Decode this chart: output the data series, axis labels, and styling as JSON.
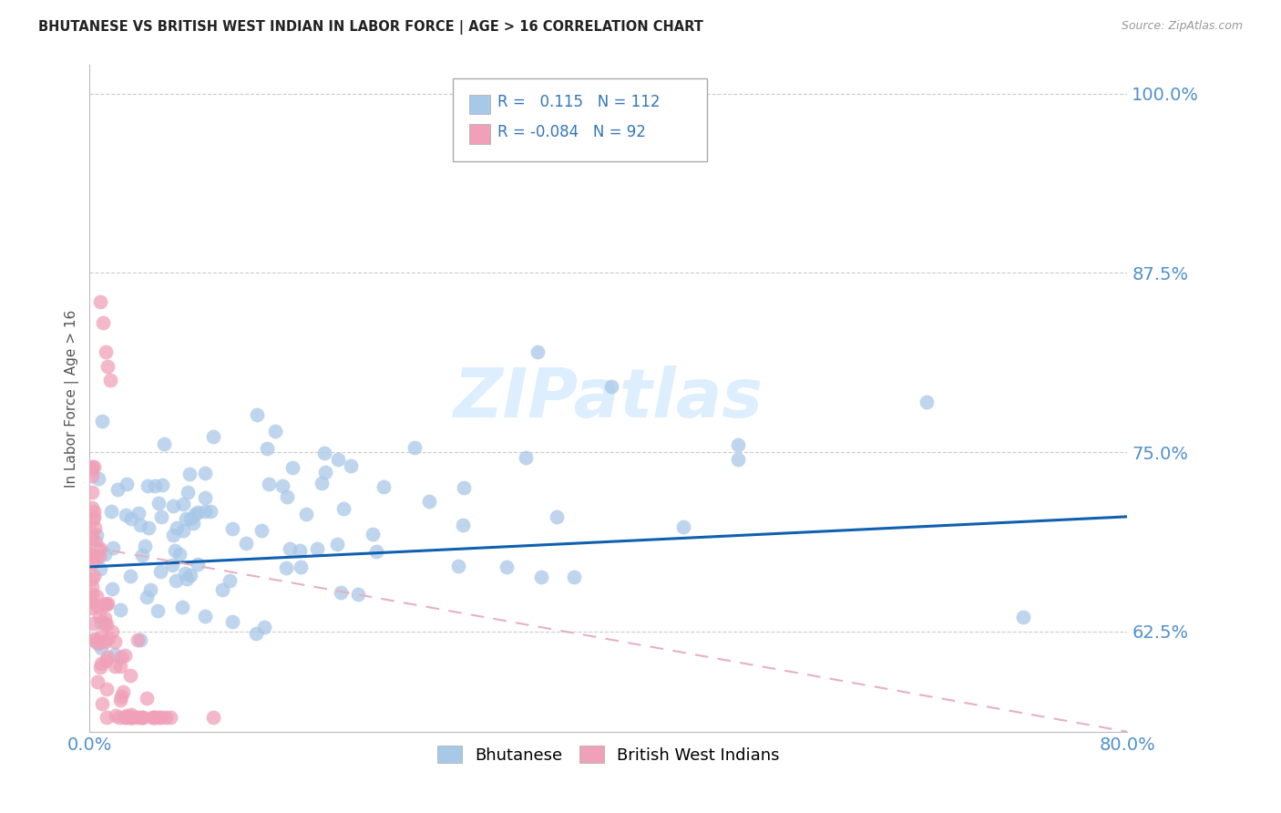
{
  "title": "BHUTANESE VS BRITISH WEST INDIAN IN LABOR FORCE | AGE > 16 CORRELATION CHART",
  "source": "Source: ZipAtlas.com",
  "ylabel": "In Labor Force | Age > 16",
  "xlim": [
    0.0,
    0.8
  ],
  "ylim": [
    0.555,
    1.02
  ],
  "yticks": [
    0.625,
    0.75,
    0.875,
    1.0
  ],
  "ytick_labels": [
    "62.5%",
    "75.0%",
    "87.5%",
    "100.0%"
  ],
  "xtick_labels": [
    "0.0%",
    "80.0%"
  ],
  "xticks": [
    0.0,
    0.8
  ],
  "bhutanese_R": 0.115,
  "bhutanese_N": 112,
  "bwi_R": -0.084,
  "bwi_N": 92,
  "bhutanese_color": "#a8c8e8",
  "bwi_color": "#f0a0b8",
  "trend_blue": "#1060b0",
  "trend_pink": "#e8b0c0",
  "background_color": "#ffffff",
  "grid_color": "#cccccc",
  "title_color": "#222222",
  "tick_label_color": "#5090cc",
  "watermark_text": "ZIPatlas",
  "watermark_color": "#ddeeff"
}
